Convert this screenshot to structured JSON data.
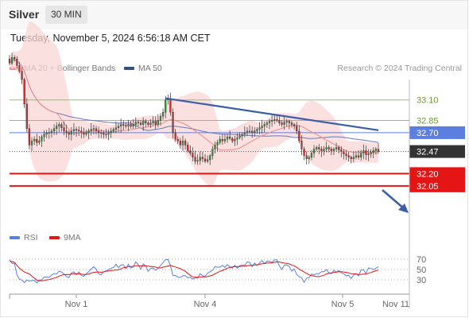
{
  "header": {
    "symbol": "Silver",
    "timeframe": "30 MIN",
    "timestamp": "Tuesday, November 5, 2024 6:56:18 AM CET"
  },
  "legend": {
    "ma": "MA 20 + Bollinger Bands",
    "ma50": "MA 50",
    "credit": "Research © 2024 Trading Central",
    "rsi": "RSI",
    "rsi_ma": "9MA"
  },
  "colors": {
    "band": "#f9d6d6",
    "ma20": "#f08a8a",
    "ma50": "#6677bb",
    "pivot": "#5b7fe0",
    "support": "#e51515",
    "resistance": "#8fc46a",
    "trendline": "#3a5ea8",
    "price_tag": "#333333"
  },
  "chart_data": [
    {
      "type": "candlestick",
      "ylim": [
        31.65,
        33.35
      ],
      "x_labels": [
        "Nov 1",
        "Nov 4",
        "Nov 5",
        "Nov 11"
      ],
      "levels": [
        {
          "label": "33.10",
          "value": 33.1,
          "kind": "resistance"
        },
        {
          "label": "32.85",
          "value": 32.85,
          "kind": "resistance"
        },
        {
          "label": "32.70",
          "value": 32.7,
          "kind": "pivot"
        },
        {
          "label": "32.47",
          "value": 32.47,
          "kind": "last"
        },
        {
          "label": "32.20",
          "value": 32.2,
          "kind": "support"
        },
        {
          "label": "32.05",
          "value": 32.05,
          "kind": "support"
        }
      ],
      "close": [
        33.55,
        33.62,
        33.6,
        33.52,
        33.45,
        33.35,
        33.05,
        32.75,
        32.55,
        32.6,
        32.62,
        32.58,
        32.6,
        32.65,
        32.68,
        32.7,
        32.7,
        32.72,
        32.75,
        32.78,
        32.8,
        32.76,
        32.72,
        32.7,
        32.68,
        32.72,
        32.74,
        32.73,
        32.72,
        32.7,
        32.68,
        32.7,
        32.72,
        32.74,
        32.75,
        32.72,
        32.7,
        32.7,
        32.68,
        32.68,
        32.7,
        32.72,
        32.74,
        32.76,
        32.78,
        32.8,
        32.79,
        32.78,
        32.8,
        32.78,
        32.8,
        32.83,
        32.82,
        32.8,
        32.84,
        32.82,
        32.8,
        32.82,
        32.84,
        32.8,
        32.85,
        32.9,
        32.95,
        33.1,
        33.12,
        32.95,
        32.7,
        32.62,
        32.6,
        32.55,
        32.6,
        32.55,
        32.48,
        32.45,
        32.4,
        32.35,
        32.36,
        32.4,
        32.38,
        32.35,
        32.37,
        32.42,
        32.5,
        32.55,
        32.58,
        32.62,
        32.6,
        32.62,
        32.65,
        32.63,
        32.6,
        32.62,
        32.64,
        32.66,
        32.68,
        32.7,
        32.72,
        32.72,
        32.7,
        32.72,
        32.74,
        32.76,
        32.78,
        32.8,
        32.82,
        32.84,
        32.85,
        32.86,
        32.85,
        32.82,
        32.8,
        32.83,
        32.84,
        32.82,
        32.8,
        32.78,
        32.72,
        32.6,
        32.5,
        32.42,
        32.38,
        32.4,
        32.45,
        32.5,
        32.52,
        32.5,
        32.48,
        32.5,
        32.52,
        32.5,
        32.48,
        32.5,
        32.52,
        32.49,
        32.47,
        32.44,
        32.42,
        32.4,
        32.38,
        32.4,
        32.42,
        32.4,
        32.45,
        32.48,
        32.43,
        32.44,
        32.46,
        32.48,
        32.5,
        32.47
      ],
      "series": [
        {
          "name": "MA 20 + Bollinger Bands",
          "kind": "ma20"
        },
        {
          "name": "MA 50",
          "kind": "ma50"
        }
      ]
    },
    {
      "type": "line",
      "ylim": [
        10,
        90
      ],
      "ticks": [
        "70",
        "50",
        "30"
      ],
      "series": [
        {
          "name": "RSI"
        },
        {
          "name": "9MA"
        }
      ]
    }
  ]
}
